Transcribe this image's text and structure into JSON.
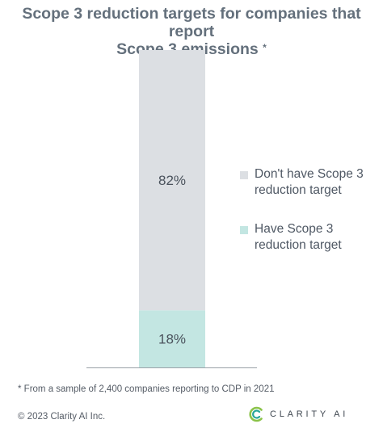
{
  "title_line1": "Scope 3 reduction targets for companies that report",
  "title_line2": "Scope 3 emissions",
  "title_marker": "*",
  "footnote": "* From a sample of 2,400 companies reporting to CDP in 2021",
  "copyright": "© 2023 Clarity AI Inc.",
  "logo_text": "CLARITY AI",
  "colors": {
    "no_target": "#dcdfe3",
    "has_target": "#c3e6e2",
    "title": "#64707c",
    "logo_ring_1": "#8bc34a",
    "logo_ring_2": "#26a69a"
  },
  "chart_data": {
    "type": "bar",
    "stacked": true,
    "categories": [
      ""
    ],
    "series": [
      {
        "name": "Have Scope 3 reduction target",
        "values": [
          18
        ],
        "label": "18%",
        "color": "#c3e6e2"
      },
      {
        "name": "Don't have Scope 3 reduction target",
        "values": [
          82
        ],
        "label": "82%",
        "color": "#dcdfe3"
      }
    ],
    "ylim": [
      0,
      100
    ],
    "legend_position": "right",
    "legend_order": [
      1,
      0
    ],
    "grid": false
  }
}
